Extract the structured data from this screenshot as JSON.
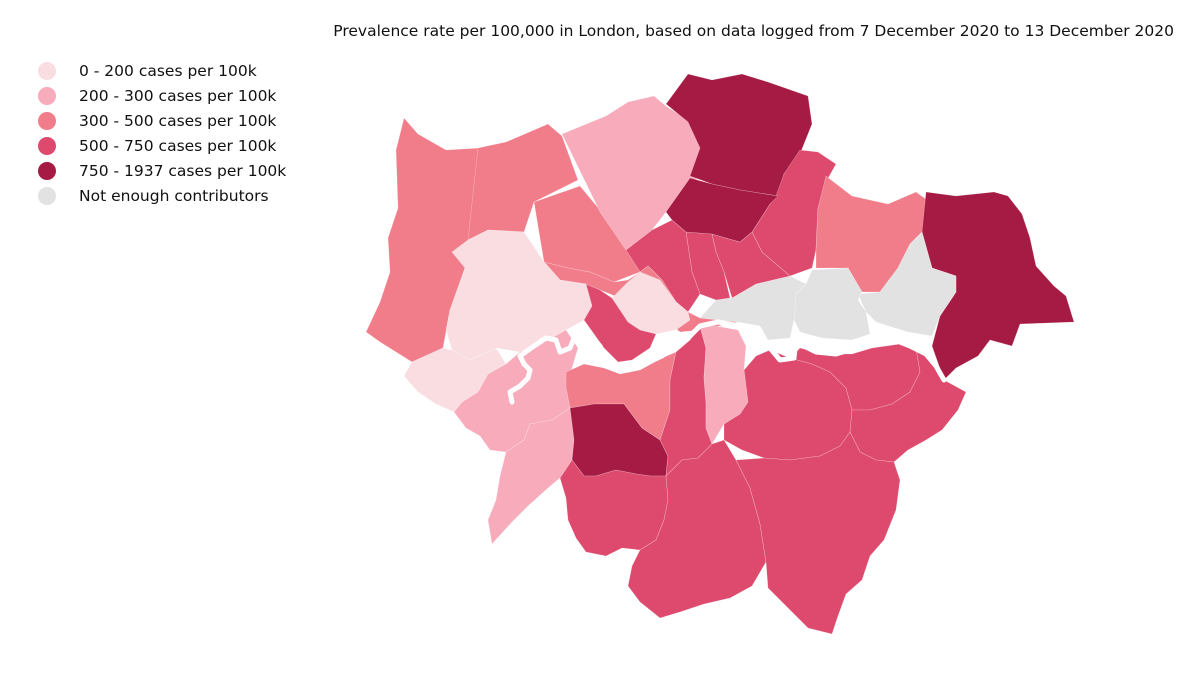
{
  "title": "Prevalence rate per 100,000 in London, based on data logged from 7 December 2020 to 13 December 2020",
  "legend": [
    {
      "label": "0 - 200 cases per 100k",
      "color": "#f9dde1"
    },
    {
      "label": "200 - 300 cases per 100k",
      "color": "#f7abbb"
    },
    {
      "label": "300 - 500 cases per 100k",
      "color": "#f17d8b"
    },
    {
      "label": "500 - 750 cases per 100k",
      "color": "#de4a6e"
    },
    {
      "label": "750 - 1937 cases per 100k",
      "color": "#a61b44"
    },
    {
      "label": "Not enough contributors",
      "color": "#e2e2e2"
    }
  ],
  "map": {
    "river_color": "#ffffff",
    "boroughs": [
      {
        "name": "Hillingdon",
        "category": 2
      },
      {
        "name": "Harrow",
        "category": 2
      },
      {
        "name": "Barnet",
        "category": 2
      },
      {
        "name": "Enfield",
        "category": 1
      },
      {
        "name": "Haringey",
        "category": 4
      },
      {
        "name": "Waltham Forest",
        "category": 3
      },
      {
        "name": "Redbridge",
        "category": 2
      },
      {
        "name": "Havering",
        "category": 4
      },
      {
        "name": "Barking and Dagenham",
        "category": 5
      },
      {
        "name": "Newham",
        "category": 5
      },
      {
        "name": "Tower Hamlets",
        "category": 5
      },
      {
        "name": "Hackney",
        "category": 3
      },
      {
        "name": "Islington",
        "category": 3
      },
      {
        "name": "Camden",
        "category": 3
      },
      {
        "name": "Brent",
        "category": 2
      },
      {
        "name": "Ealing",
        "category": 0
      },
      {
        "name": "Hounslow",
        "category": 0
      },
      {
        "name": "Westminster",
        "category": 0
      },
      {
        "name": "City of London",
        "category": 0
      },
      {
        "name": "Kensington and Chelsea",
        "category": 3
      },
      {
        "name": "Hammersmith and Fulham",
        "category": 3
      },
      {
        "name": "Richmond upon Thames",
        "category": 1
      },
      {
        "name": "Kingston upon Thames",
        "category": 1
      },
      {
        "name": "Wandsworth",
        "category": 2
      },
      {
        "name": "Merton",
        "category": 4
      },
      {
        "name": "Lambeth",
        "category": 3
      },
      {
        "name": "Southwark",
        "category": 1
      },
      {
        "name": "Sutton",
        "category": 3
      },
      {
        "name": "Croydon",
        "category": 3
      },
      {
        "name": "Lewisham",
        "category": 3
      },
      {
        "name": "Greenwich",
        "category": 3
      },
      {
        "name": "Bromley",
        "category": 3
      },
      {
        "name": "Bexley",
        "category": 3
      }
    ]
  }
}
